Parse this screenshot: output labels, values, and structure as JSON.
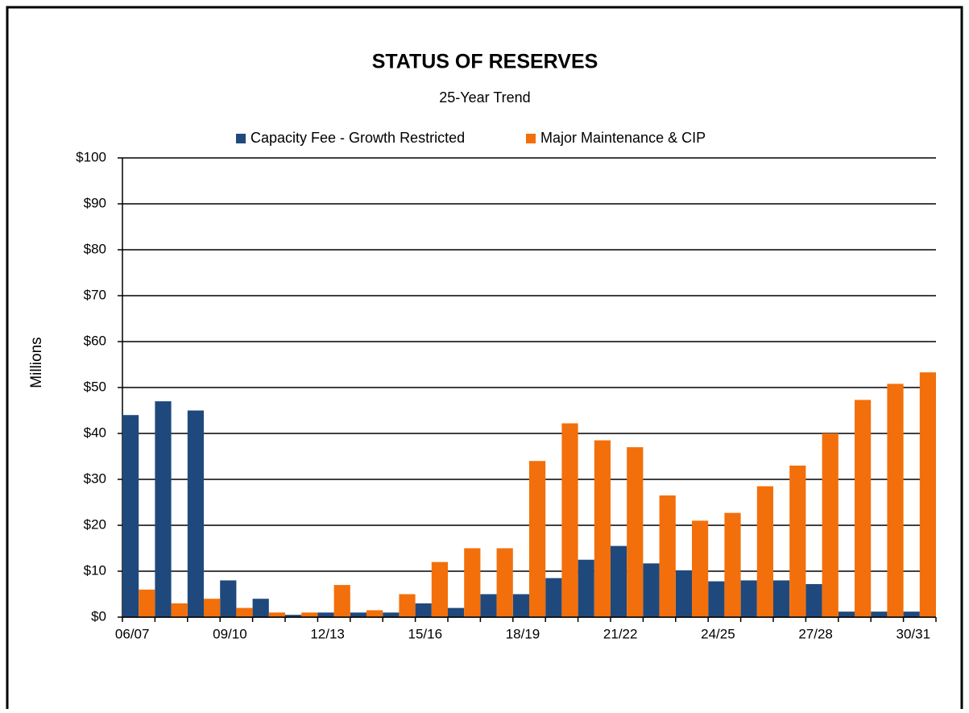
{
  "chart_data": {
    "type": "bar",
    "title": "STATUS  OF  RESERVES",
    "subtitle": "25-Year Trend",
    "y_label": "Millions",
    "categories": [
      "06/07",
      null,
      null,
      "09/10",
      null,
      null,
      "12/13",
      null,
      null,
      "15/16",
      null,
      null,
      "18/19",
      null,
      null,
      "21/22",
      null,
      null,
      "24/25",
      null,
      null,
      "27/28",
      null,
      null,
      "30/31"
    ],
    "series": [
      {
        "name": "Capacity Fee - Growth Restricted",
        "color": "#1f497d",
        "values": [
          44,
          47,
          45,
          8,
          4,
          0.5,
          1,
          1,
          1,
          3,
          2,
          5,
          5,
          8.5,
          12.5,
          15.5,
          11.7,
          10.2,
          7.8,
          8,
          8,
          7.2,
          1.2,
          1.2,
          1.2
        ]
      },
      {
        "name": "Major Maintenance & CIP",
        "color": "#f26f0b",
        "values": [
          6,
          3,
          4,
          2,
          1,
          1,
          7,
          1.5,
          5,
          12,
          15,
          15,
          34,
          42.2,
          38.5,
          37,
          26.5,
          21,
          22.7,
          28.5,
          33,
          40,
          47.3,
          50.8,
          53.3
        ]
      }
    ],
    "ylim": [
      0,
      100
    ],
    "yticks": [
      {
        "value": 0,
        "label": "$0"
      },
      {
        "value": 10,
        "label": "$10"
      },
      {
        "value": 20,
        "label": "$20"
      },
      {
        "value": 30,
        "label": "$30"
      },
      {
        "value": 40,
        "label": "$40"
      },
      {
        "value": 50,
        "label": "$50"
      },
      {
        "value": 60,
        "label": "$60"
      },
      {
        "value": 70,
        "label": "$70"
      },
      {
        "value": 80,
        "label": "$80"
      },
      {
        "value": 90,
        "label": "$90"
      },
      {
        "value": 100,
        "label": "$100"
      }
    ],
    "grid": true,
    "legend": "top"
  }
}
